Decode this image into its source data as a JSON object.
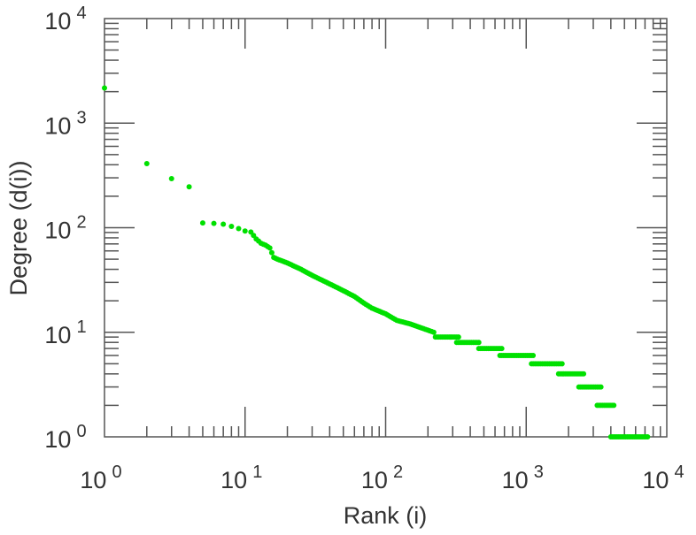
{
  "chart_data": {
    "type": "scatter",
    "title": "",
    "xlabel": "Rank (i)",
    "ylabel": "Degree (d(i))",
    "xscale": "log",
    "yscale": "log",
    "xlim": [
      1,
      10000
    ],
    "ylim": [
      1,
      10000
    ],
    "x_ticks": [
      {
        "base": "10",
        "exp": "0"
      },
      {
        "base": "10",
        "exp": "1"
      },
      {
        "base": "10",
        "exp": "2"
      },
      {
        "base": "10",
        "exp": "3"
      },
      {
        "base": "10",
        "exp": "4"
      }
    ],
    "y_ticks": [
      {
        "base": "10",
        "exp": "0"
      },
      {
        "base": "10",
        "exp": "1"
      },
      {
        "base": "10",
        "exp": "2"
      },
      {
        "base": "10",
        "exp": "3"
      },
      {
        "base": "10",
        "exp": "4"
      }
    ],
    "grid": false,
    "marker_color": "#00e000",
    "points": [
      [
        1,
        2170
      ],
      [
        2,
        410
      ],
      [
        3,
        295
      ],
      [
        4,
        246
      ],
      [
        5,
        111
      ],
      [
        6,
        110
      ],
      [
        7,
        108
      ],
      [
        8,
        103
      ],
      [
        9,
        98
      ],
      [
        10,
        93
      ],
      [
        11,
        91
      ],
      [
        12,
        78
      ],
      [
        13,
        71
      ],
      [
        14,
        68
      ],
      [
        15,
        64
      ],
      [
        16,
        52
      ],
      [
        17,
        50
      ],
      [
        20,
        46
      ],
      [
        25,
        40
      ],
      [
        30,
        35
      ],
      [
        40,
        29
      ],
      [
        50,
        25
      ],
      [
        60,
        22
      ],
      [
        70,
        19
      ],
      [
        80,
        17
      ],
      [
        100,
        15
      ],
      [
        120,
        13
      ],
      [
        150,
        12
      ],
      [
        180,
        11
      ],
      [
        220,
        10
      ]
    ],
    "plateaus": [
      {
        "degree": 9,
        "rank_start": 226,
        "rank_end": 330
      },
      {
        "degree": 8,
        "rank_start": 320,
        "rank_end": 460
      },
      {
        "degree": 7,
        "rank_start": 460,
        "rank_end": 670
      },
      {
        "degree": 6,
        "rank_start": 650,
        "rank_end": 1120
      },
      {
        "degree": 5,
        "rank_start": 1090,
        "rank_end": 1800
      },
      {
        "degree": 4,
        "rank_start": 1700,
        "rank_end": 2560
      },
      {
        "degree": 3,
        "rank_start": 2370,
        "rank_end": 3400
      },
      {
        "degree": 2,
        "rank_start": 3200,
        "rank_end": 4200
      },
      {
        "degree": 1,
        "rank_start": 4000,
        "rank_end": 7300
      }
    ]
  }
}
